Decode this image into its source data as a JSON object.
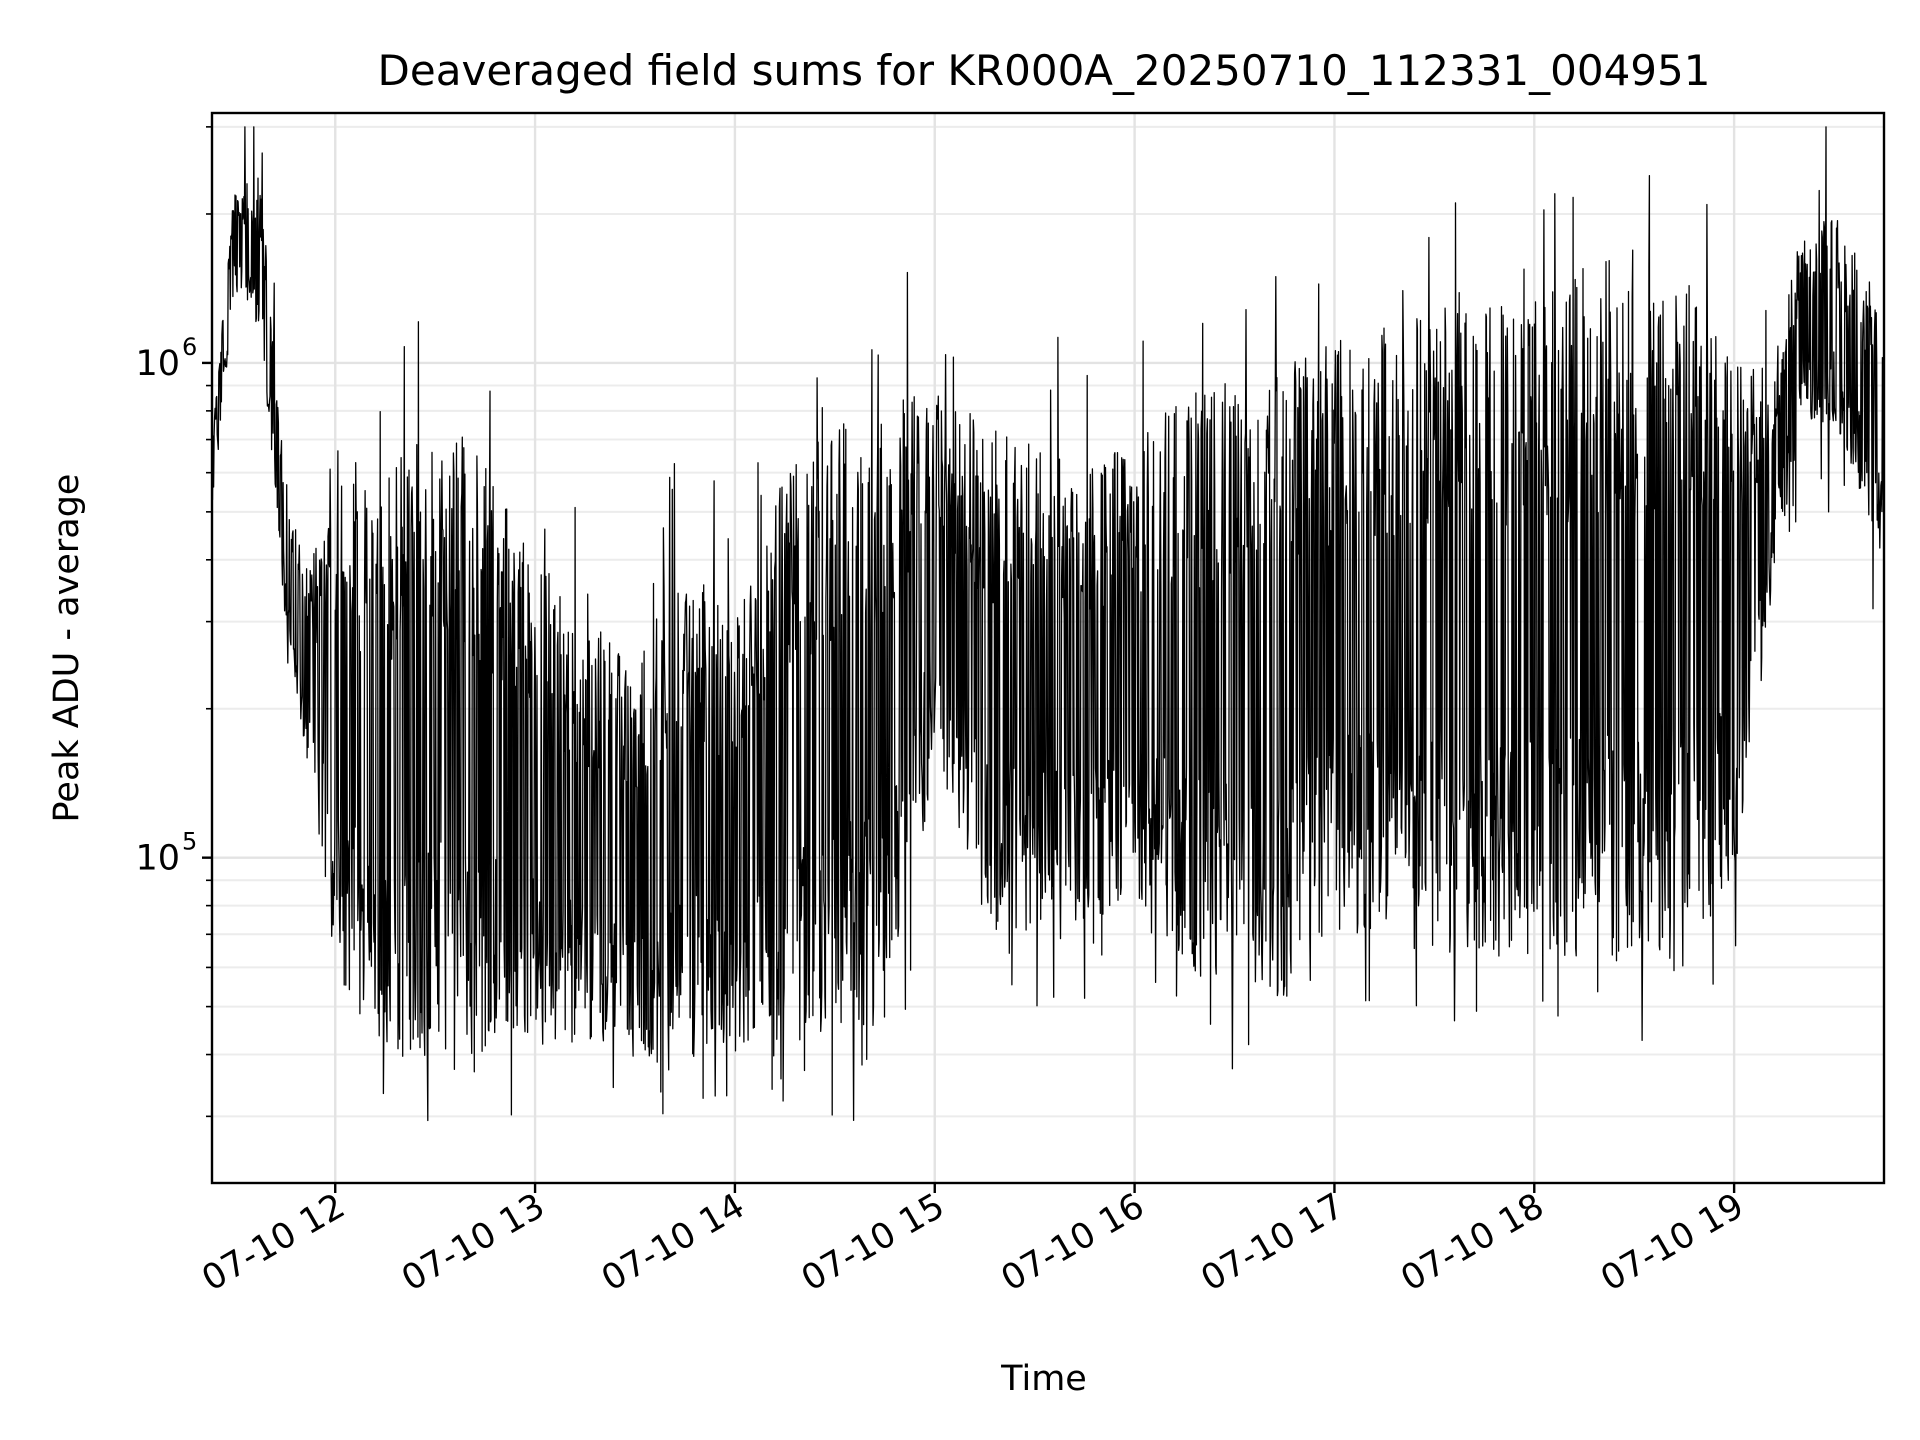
{
  "chart_data": {
    "type": "line",
    "title": "Deaveraged field sums for KR000A_20250710_112331_004951",
    "xlabel": "Time",
    "ylabel": "Peak ADU - average",
    "yscale": "log",
    "ylim": [
      22000,
      3200000
    ],
    "xlim": [
      "2025-07-10 11:23",
      "2025-07-10 19:45"
    ],
    "grid": true,
    "legend": "none",
    "line_color": "#000000",
    "x_ticks": [
      {
        "value": "2025-07-10 12:00",
        "label": "07-10 12"
      },
      {
        "value": "2025-07-10 13:00",
        "label": "07-10 13"
      },
      {
        "value": "2025-07-10 14:00",
        "label": "07-10 14"
      },
      {
        "value": "2025-07-10 15:00",
        "label": "07-10 15"
      },
      {
        "value": "2025-07-10 16:00",
        "label": "07-10 16"
      },
      {
        "value": "2025-07-10 17:00",
        "label": "07-10 17"
      },
      {
        "value": "2025-07-10 18:00",
        "label": "07-10 18"
      },
      {
        "value": "2025-07-10 19:00",
        "label": "07-10 19"
      }
    ],
    "y_ticks": [
      {
        "value": 100000,
        "base": "10",
        "exp": "5"
      },
      {
        "value": 1000000,
        "base": "10",
        "exp": "6"
      }
    ],
    "envelope": {
      "x": [
        "2025-07-10 11:23",
        "2025-07-10 11:30",
        "2025-07-10 11:38",
        "2025-07-10 11:45",
        "2025-07-10 11:52",
        "2025-07-10 12:00",
        "2025-07-10 12:15",
        "2025-07-10 12:30",
        "2025-07-10 12:45",
        "2025-07-10 13:00",
        "2025-07-10 13:15",
        "2025-07-10 13:30",
        "2025-07-10 13:45",
        "2025-07-10 14:00",
        "2025-07-10 14:15",
        "2025-07-10 14:30",
        "2025-07-10 14:45",
        "2025-07-10 15:00",
        "2025-07-10 15:15",
        "2025-07-10 15:30",
        "2025-07-10 15:45",
        "2025-07-10 16:00",
        "2025-07-10 16:15",
        "2025-07-10 16:30",
        "2025-07-10 16:45",
        "2025-07-10 17:00",
        "2025-07-10 17:15",
        "2025-07-10 17:30",
        "2025-07-10 17:45",
        "2025-07-10 18:00",
        "2025-07-10 18:15",
        "2025-07-10 18:30",
        "2025-07-10 18:45",
        "2025-07-10 19:00",
        "2025-07-10 19:10",
        "2025-07-10 19:20",
        "2025-07-10 19:30",
        "2025-07-10 19:45"
      ],
      "low": [
        500000,
        1400000,
        1100000,
        300000,
        150000,
        60000,
        38000,
        40000,
        40000,
        42000,
        40000,
        38000,
        38000,
        38000,
        40000,
        42000,
        45000,
        150000,
        70000,
        70000,
        75000,
        80000,
        60000,
        55000,
        52000,
        70000,
        65000,
        65000,
        62000,
        60000,
        62000,
        62000,
        62000,
        90000,
        300000,
        750000,
        750000,
        400000
      ],
      "high": [
        700000,
        2400000,
        2200000,
        600000,
        400000,
        500000,
        650000,
        750000,
        650000,
        400000,
        300000,
        250000,
        400000,
        300000,
        600000,
        750000,
        850000,
        900000,
        750000,
        700000,
        600000,
        700000,
        900000,
        900000,
        1000000,
        1100000,
        1200000,
        1300000,
        1300000,
        1350000,
        1400000,
        1400000,
        1400000,
        1100000,
        900000,
        1800000,
        2000000,
        1300000
      ]
    },
    "extremes": {
      "max": 3000000,
      "min": 26000
    }
  }
}
